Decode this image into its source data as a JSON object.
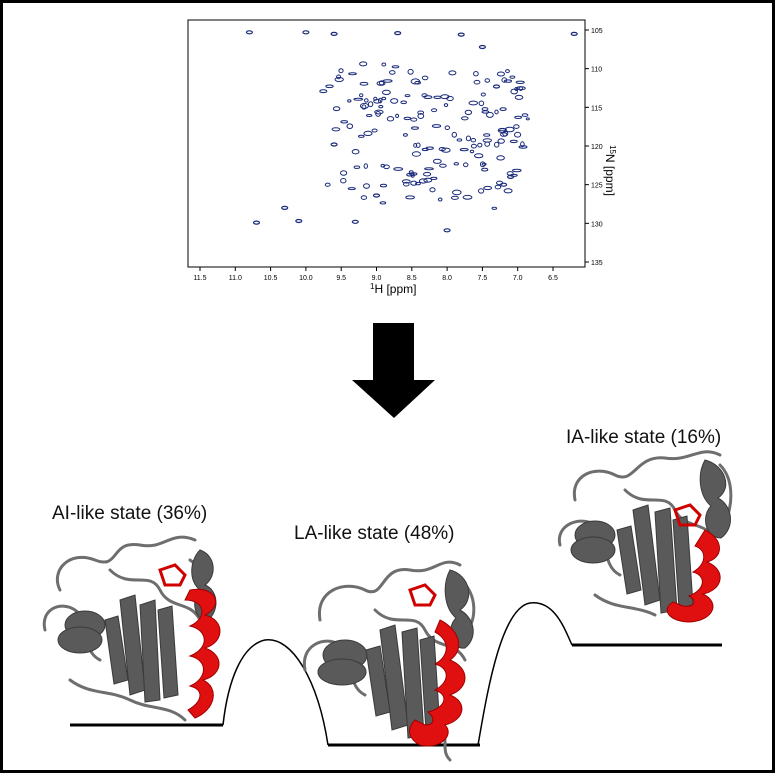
{
  "nmr_spectrum": {
    "x_axis": {
      "label_sup": "1",
      "label_rest": "H [ppm]",
      "ticks": [
        "11.5",
        "11.0",
        "10.5",
        "10.0",
        "9.5",
        "9.0",
        "8.5",
        "8.0",
        "7.5",
        "7.0",
        "6.5"
      ]
    },
    "y_axis": {
      "label_sup": "15",
      "label_rest": "N [ppm]",
      "ticks": [
        "105",
        "110",
        "115",
        "120",
        "125",
        "130",
        "135"
      ]
    },
    "peak_color": "#1a2a7a"
  },
  "states": [
    {
      "label": "AI-like state (36%)"
    },
    {
      "label": "LA-like state (48%)"
    },
    {
      "label": "IA-like state (16%)"
    }
  ],
  "colors": {
    "protein": "#6e6e6e",
    "helix_highlight": "#e01010",
    "arrow": "#000000"
  }
}
